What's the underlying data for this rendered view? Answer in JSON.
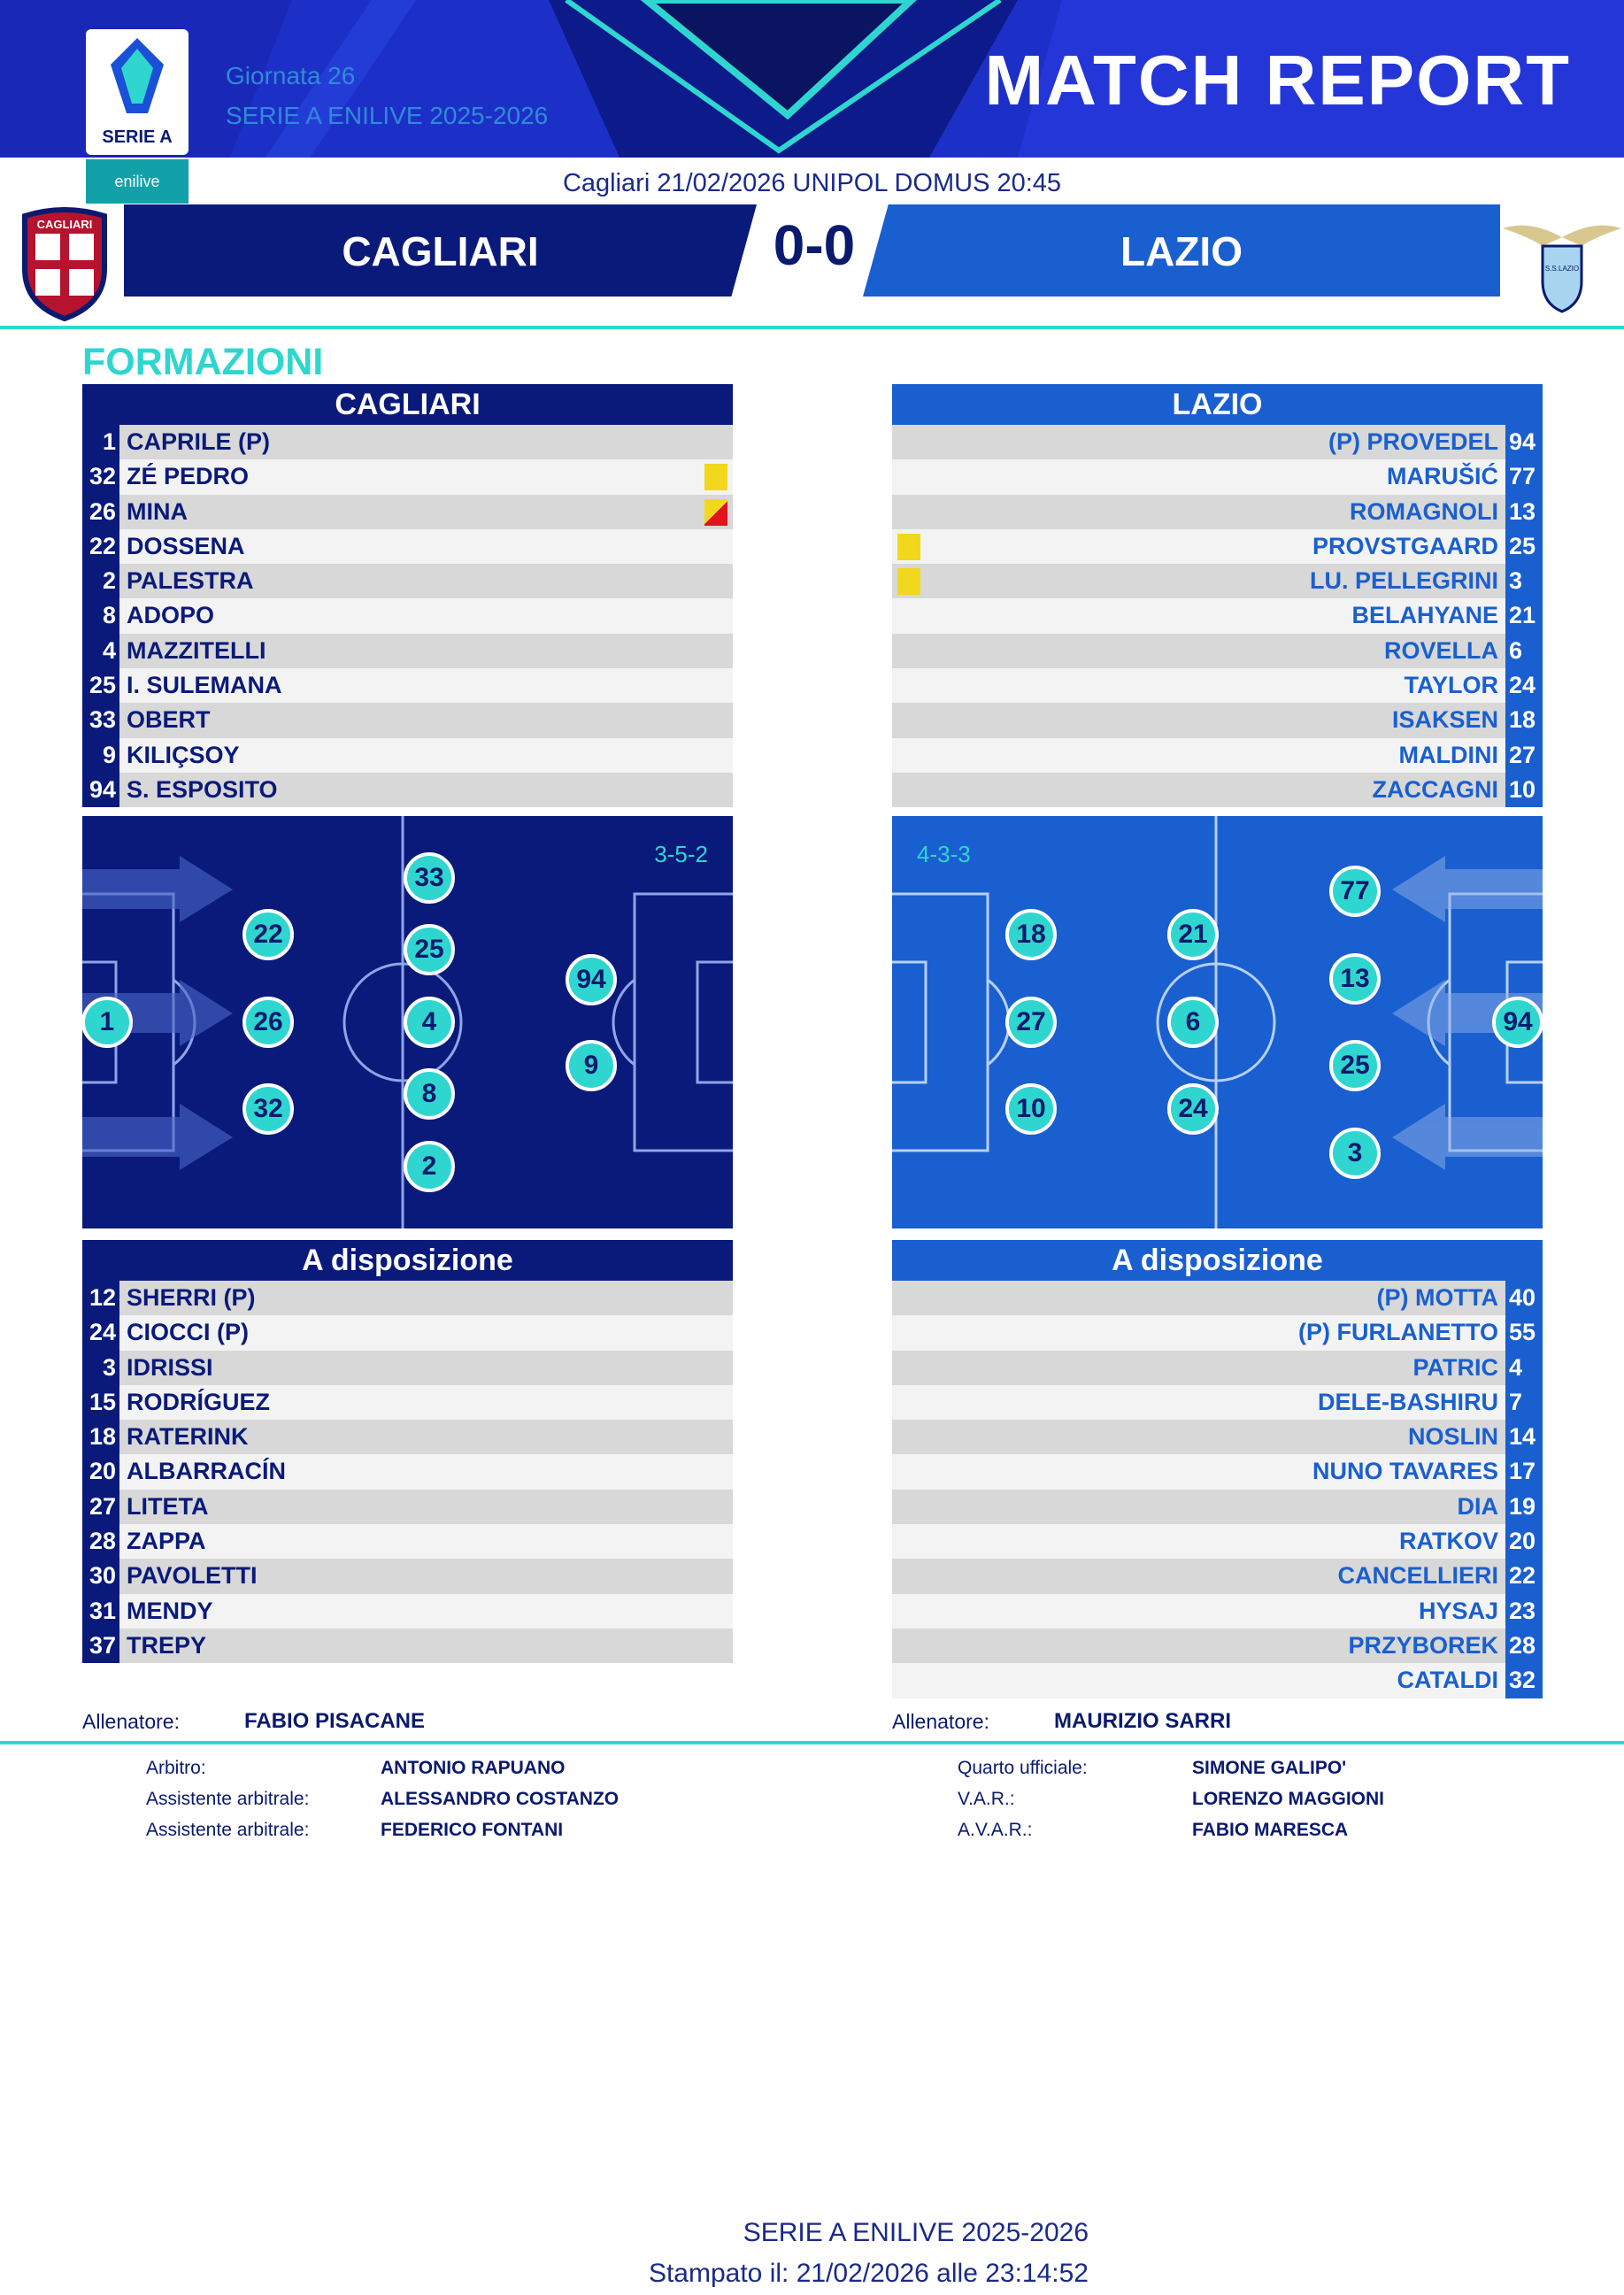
{
  "header": {
    "round": "Giornata 26",
    "season": "SERIE A ENILIVE 2025-2026",
    "title": "MATCH REPORT",
    "logo_text": "SERIE A",
    "sponsor": "enilive"
  },
  "match": {
    "venue_line": "Cagliari 21/02/2026 UNIPOL DOMUS 20:45",
    "home": "CAGLIARI",
    "away": "LAZIO",
    "score": "0-0"
  },
  "colors": {
    "home": "#0a1a7a",
    "away": "#1a5fcf",
    "accent": "#2fd6d0"
  },
  "section": {
    "lineups": "FORMAZIONI",
    "bench": "A disposizione"
  },
  "home_lineup": [
    {
      "num": "1",
      "name": "CAPRILE   (P)"
    },
    {
      "num": "32",
      "name": "ZÉ PEDRO",
      "card": "yellow"
    },
    {
      "num": "26",
      "name": "MINA",
      "card": "red"
    },
    {
      "num": "22",
      "name": "DOSSENA"
    },
    {
      "num": "2",
      "name": "PALESTRA"
    },
    {
      "num": "8",
      "name": "ADOPO"
    },
    {
      "num": "4",
      "name": "MAZZITELLI"
    },
    {
      "num": "25",
      "name": "I. SULEMANA"
    },
    {
      "num": "33",
      "name": "OBERT"
    },
    {
      "num": "9",
      "name": "KILIÇSOY"
    },
    {
      "num": "94",
      "name": "S. ESPOSITO"
    }
  ],
  "away_lineup": [
    {
      "num": "94",
      "name": "(P)   PROVEDEL"
    },
    {
      "num": "77",
      "name": "MARUŠIĆ"
    },
    {
      "num": "13",
      "name": "ROMAGNOLI"
    },
    {
      "num": "25",
      "name": "PROVSTGAARD",
      "card": "yellow"
    },
    {
      "num": "3",
      "name": "LU. PELLEGRINI",
      "card": "yellow"
    },
    {
      "num": "21",
      "name": "BELAHYANE"
    },
    {
      "num": "6",
      "name": "ROVELLA"
    },
    {
      "num": "24",
      "name": "TAYLOR"
    },
    {
      "num": "18",
      "name": "ISAKSEN"
    },
    {
      "num": "27",
      "name": "MALDINI"
    },
    {
      "num": "10",
      "name": "ZACCAGNI"
    }
  ],
  "home_formation": "3-5-2",
  "away_formation": "4-3-3",
  "home_pitch": [
    "1",
    "22",
    "26",
    "32",
    "33",
    "25",
    "4",
    "8",
    "2",
    "94",
    "9"
  ],
  "away_pitch": [
    "18",
    "27",
    "10",
    "21",
    "6",
    "24",
    "77",
    "13",
    "25",
    "3",
    "94"
  ],
  "home_bench": [
    {
      "num": "12",
      "name": "SHERRI   (P)"
    },
    {
      "num": "24",
      "name": "CIOCCI   (P)"
    },
    {
      "num": "3",
      "name": "IDRISSI"
    },
    {
      "num": "15",
      "name": "RODRÍGUEZ"
    },
    {
      "num": "18",
      "name": "RATERINK"
    },
    {
      "num": "20",
      "name": "ALBARRACÍN"
    },
    {
      "num": "27",
      "name": "LITETA"
    },
    {
      "num": "28",
      "name": "ZAPPA"
    },
    {
      "num": "30",
      "name": "PAVOLETTI"
    },
    {
      "num": "31",
      "name": "MENDY"
    },
    {
      "num": "37",
      "name": "TREPY"
    }
  ],
  "away_bench": [
    {
      "num": "40",
      "name": "(P)   MOTTA"
    },
    {
      "num": "55",
      "name": "(P)   FURLANETTO"
    },
    {
      "num": "4",
      "name": "PATRIC"
    },
    {
      "num": "7",
      "name": "DELE-BASHIRU"
    },
    {
      "num": "14",
      "name": "NOSLIN"
    },
    {
      "num": "17",
      "name": "NUNO TAVARES"
    },
    {
      "num": "19",
      "name": "DIA"
    },
    {
      "num": "20",
      "name": "RATKOV"
    },
    {
      "num": "22",
      "name": "CANCELLIERI"
    },
    {
      "num": "23",
      "name": "HYSAJ"
    },
    {
      "num": "28",
      "name": "PRZYBOREK"
    },
    {
      "num": "32",
      "name": "CATALDI"
    }
  ],
  "coaches": {
    "label": "Allenatore:",
    "home": "FABIO PISACANE",
    "away": "MAURIZIO SARRI"
  },
  "officials": {
    "left": [
      {
        "label": "Arbitro:",
        "name": "ANTONIO RAPUANO"
      },
      {
        "label": "Assistente arbitrale:",
        "name": "ALESSANDRO COSTANZO"
      },
      {
        "label": "Assistente arbitrale:",
        "name": "FEDERICO FONTANI"
      }
    ],
    "right": [
      {
        "label": "Quarto ufficiale:",
        "name": "SIMONE GALIPO'"
      },
      {
        "label": "V.A.R.:",
        "name": "LORENZO MAGGIONI"
      },
      {
        "label": "A.V.A.R.:",
        "name": "FABIO MARESCA"
      }
    ]
  },
  "footer": {
    "season": "SERIE A ENILIVE 2025-2026",
    "printed": "Stampato il: 21/02/2026 alle 23:14:52"
  },
  "crest_home_text": "CAGLIARI",
  "crest_away_text": "S.S.LAZIO"
}
